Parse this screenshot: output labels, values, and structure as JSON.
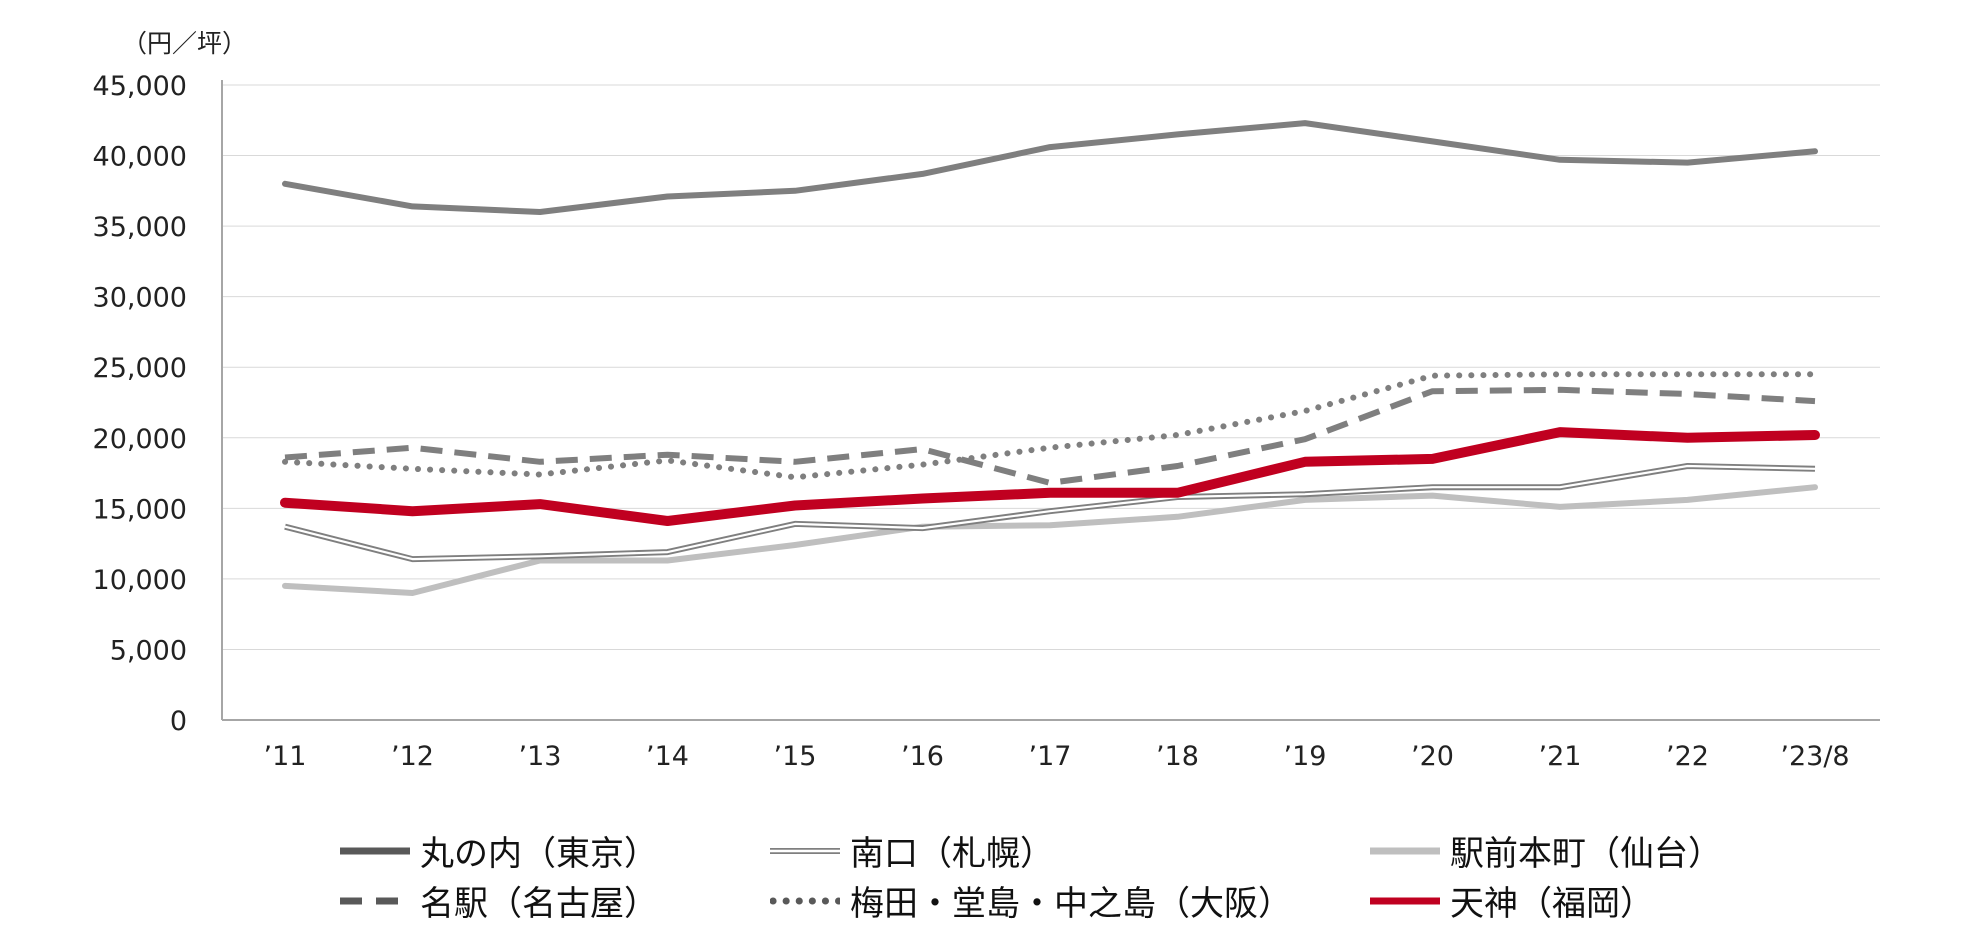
{
  "chart_data": {
    "type": "line",
    "unit_label": "（円／坪）",
    "x": [
      "’11",
      "’12",
      "’13",
      "’14",
      "’15",
      "’16",
      "’17",
      "’18",
      "’19",
      "’20",
      "’21",
      "’22",
      "’23/8"
    ],
    "ylim": [
      0,
      45000
    ],
    "yticks": [
      0,
      5000,
      10000,
      15000,
      20000,
      25000,
      30000,
      35000,
      40000,
      45000
    ],
    "ytick_labels": [
      "0",
      "5,000",
      "10,000",
      "15,000",
      "20,000",
      "25,000",
      "30,000",
      "35,000",
      "40,000",
      "45,000"
    ],
    "grid": true,
    "legend_position": "bottom",
    "series": [
      {
        "name": "丸の内（東京）",
        "style": "solid",
        "color": "#7f7f7f",
        "values": [
          38000,
          36400,
          36000,
          37100,
          37500,
          38700,
          40600,
          41500,
          42300,
          41000,
          39700,
          39500,
          40300
        ]
      },
      {
        "name": "南口（札幌）",
        "style": "double",
        "color": "#7f7f7f",
        "values": [
          13700,
          11400,
          11600,
          11900,
          13900,
          13600,
          14800,
          15800,
          16000,
          16500,
          16500,
          18000,
          17800
        ]
      },
      {
        "name": "駅前本町（仙台）",
        "style": "solid",
        "color": "#bfbfbf",
        "values": [
          9500,
          9000,
          11300,
          11300,
          12400,
          13700,
          13800,
          14400,
          15600,
          15900,
          15100,
          15600,
          16500
        ]
      },
      {
        "name": "名駅（名古屋）",
        "style": "dashed",
        "color": "#7f7f7f",
        "values": [
          18600,
          19300,
          18300,
          18800,
          18300,
          19200,
          16800,
          18000,
          19900,
          23300,
          23400,
          23100,
          22600
        ]
      },
      {
        "name": "梅田・堂島・中之島（大阪）",
        "style": "dotted",
        "color": "#7f7f7f",
        "values": [
          18300,
          17800,
          17400,
          18400,
          17200,
          18100,
          19300,
          20200,
          21900,
          24400,
          24500,
          24500,
          24500
        ]
      },
      {
        "name": "天神（福岡）",
        "style": "solid",
        "color": "#c00020",
        "values": [
          15400,
          14800,
          15300,
          14100,
          15200,
          15700,
          16100,
          16100,
          18300,
          18500,
          20400,
          20000,
          20200
        ]
      }
    ]
  }
}
